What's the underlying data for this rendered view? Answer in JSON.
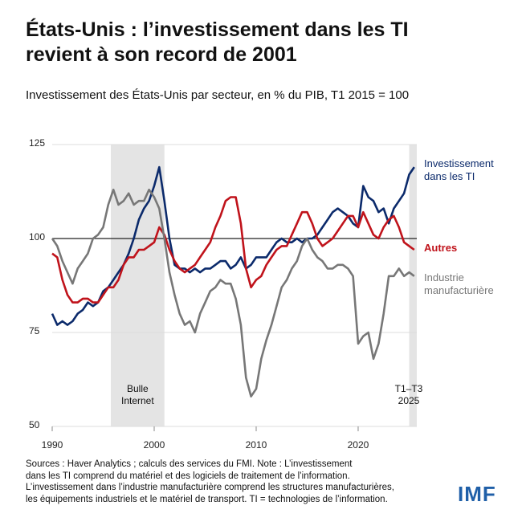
{
  "chart_data": {
    "type": "line",
    "title": "États-Unis : l’investissement dans les TI revient à son record de 2001",
    "subtitle": "Investissement des États-Unis par secteur, en % du PIB, T1 2015 = 100",
    "x": [
      1990,
      1990.5,
      1991,
      1991.5,
      1992,
      1992.5,
      1993,
      1993.5,
      1994,
      1994.5,
      1995,
      1995.5,
      1996,
      1996.5,
      1997,
      1997.5,
      1998,
      1998.5,
      1999,
      1999.5,
      2000,
      2000.5,
      2001,
      2001.5,
      2002,
      2002.5,
      2003,
      2003.5,
      2004,
      2004.5,
      2005,
      2005.5,
      2006,
      2006.5,
      2007,
      2007.5,
      2008,
      2008.5,
      2009,
      2009.5,
      2010,
      2010.5,
      2011,
      2011.5,
      2012,
      2012.5,
      2013,
      2013.5,
      2014,
      2014.5,
      2015,
      2015.5,
      2016,
      2016.5,
      2017,
      2017.5,
      2018,
      2018.5,
      2019,
      2019.5,
      2020,
      2020.5,
      2021,
      2021.5,
      2022,
      2022.5,
      2023,
      2023.5,
      2024,
      2024.5,
      2025,
      2025.5
    ],
    "series": [
      {
        "name": "Investissement dans les TI",
        "color": "#0b2a6b",
        "values": [
          80,
          77,
          78,
          77,
          78,
          80,
          81,
          83,
          82,
          83,
          86,
          87,
          89,
          91,
          93,
          96,
          100,
          105,
          108,
          110,
          114,
          119,
          110,
          100,
          93,
          92,
          92,
          91,
          92,
          91,
          92,
          92,
          93,
          94,
          94,
          92,
          93,
          95,
          92,
          93,
          95,
          95,
          95,
          97,
          99,
          100,
          99,
          99,
          100,
          99,
          100,
          100,
          101,
          103,
          105,
          107,
          108,
          107,
          106,
          104,
          103,
          114,
          111,
          110,
          107,
          108,
          104,
          108,
          110,
          112,
          117,
          119
        ]
      },
      {
        "name": "Autres",
        "color": "#c0131b",
        "values": [
          96,
          95,
          89,
          85,
          83,
          83,
          84,
          84,
          83,
          83,
          85,
          87,
          87,
          89,
          93,
          95,
          95,
          97,
          97,
          98,
          99,
          103,
          101,
          97,
          94,
          92,
          91,
          92,
          93,
          95,
          97,
          99,
          103,
          106,
          110,
          111,
          111,
          104,
          92,
          87,
          89,
          90,
          93,
          95,
          97,
          98,
          98,
          101,
          104,
          107,
          107,
          104,
          100,
          98,
          99,
          100,
          102,
          104,
          106,
          106,
          103,
          107,
          104,
          101,
          100,
          103,
          105,
          106,
          103,
          99,
          98,
          97
        ]
      },
      {
        "name": "Industrie manufacturière",
        "color": "#777777",
        "values": [
          100,
          98,
          94,
          91,
          88,
          92,
          94,
          96,
          100,
          101,
          103,
          109,
          113,
          109,
          110,
          112,
          109,
          110,
          110,
          113,
          111,
          108,
          100,
          91,
          85,
          80,
          77,
          78,
          75,
          80,
          83,
          86,
          87,
          89,
          88,
          88,
          84,
          77,
          63,
          58,
          60,
          68,
          73,
          77,
          82,
          87,
          89,
          92,
          94,
          98,
          100,
          97,
          95,
          94,
          92,
          92,
          93,
          93,
          92,
          90,
          72,
          74,
          75,
          68,
          72,
          80,
          90,
          90,
          92,
          90,
          91,
          90
        ]
      }
    ],
    "xlim": [
      1990,
      2025.75
    ],
    "xticks": [
      1990,
      2000,
      2010,
      2020
    ],
    "ylim": [
      50,
      125
    ],
    "yticks": [
      50,
      75,
      100,
      125
    ],
    "grid": true,
    "reference_line": 100,
    "shaded": [
      {
        "x": [
          1995.75,
          2001
        ],
        "label": "Bulle Internet"
      },
      {
        "x": [
          2025,
          2025.75
        ],
        "label": "T1–T3 2025"
      }
    ],
    "notes": [
      "Sources : Haver Analytics ; calculs des services du FMI. Note : L’investissement",
      "dans les TI comprend du matériel et des logiciels de traitement de l’information.",
      "L’investissement dans l’industrie manufacturière comprend les structures manufacturières,",
      "les équipements industriels et le matériel de transport. TI = technologies de l’information."
    ],
    "logo": "IMF"
  }
}
